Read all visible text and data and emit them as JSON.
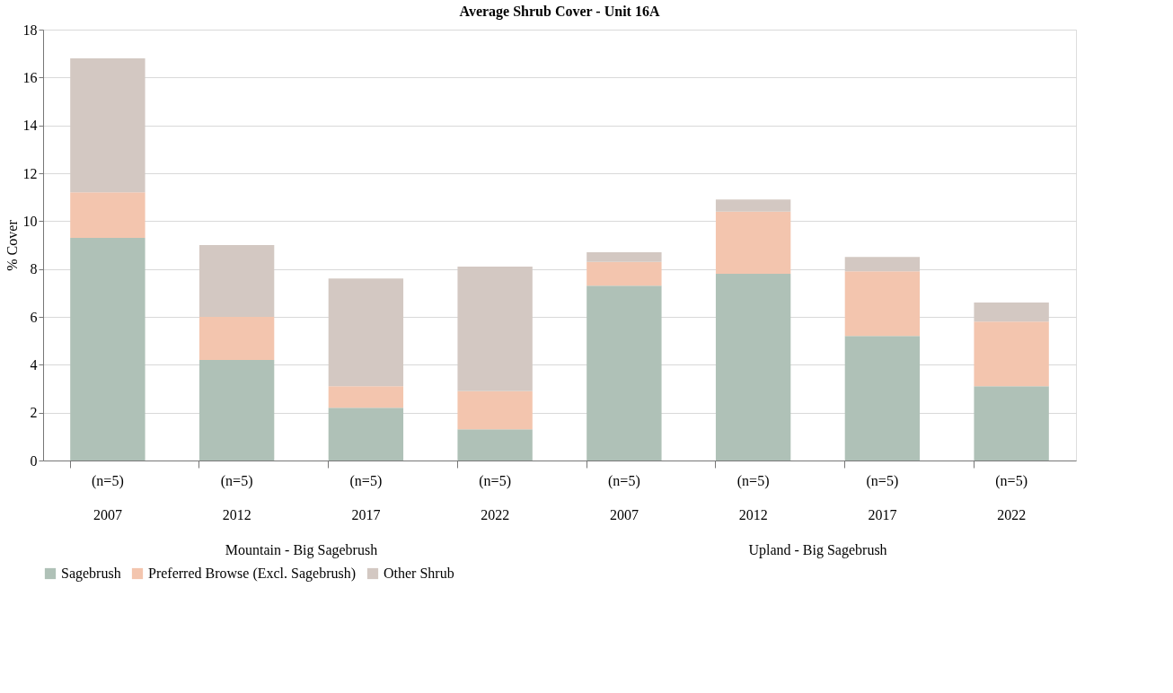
{
  "chart_data": {
    "type": "bar",
    "title": "Average Shrub Cover - Unit 16A",
    "ylabel": "% Cover",
    "categories": [
      "(n=5)\n2007",
      "(n=5)\n2012",
      "(n=5)\n2017",
      "(n=5)\n2022",
      "(n=5)\n2007",
      "(n=5)\n2012",
      "(n=5)\n2017",
      "(n=5)\n2022"
    ],
    "annotations": [
      "Mountain - Big Sagebrush",
      "Upland - Big Sagebrush"
    ],
    "stacked": true,
    "series": [
      {
        "name": "Sagebrush",
        "color": "#afc1b7",
        "values": [
          9.3,
          4.2,
          2.2,
          1.3,
          7.3,
          7.8,
          5.2,
          3.1
        ]
      },
      {
        "name": "Preferred Browse (Excl. Sagebrush)",
        "color": "#f3c5ae",
        "values": [
          1.9,
          1.8,
          0.9,
          1.6,
          1.0,
          2.6,
          2.7,
          2.7
        ]
      },
      {
        "name": "Other Shrub",
        "color": "#d3c8c2",
        "values": [
          5.6,
          3.0,
          4.5,
          5.2,
          0.4,
          0.5,
          0.6,
          0.8
        ]
      }
    ],
    "ylim": [
      0,
      18
    ],
    "yticks": [
      0,
      2,
      4,
      6,
      8,
      10,
      12,
      14,
      16,
      18
    ],
    "grid": "y",
    "legend": "bottom"
  }
}
